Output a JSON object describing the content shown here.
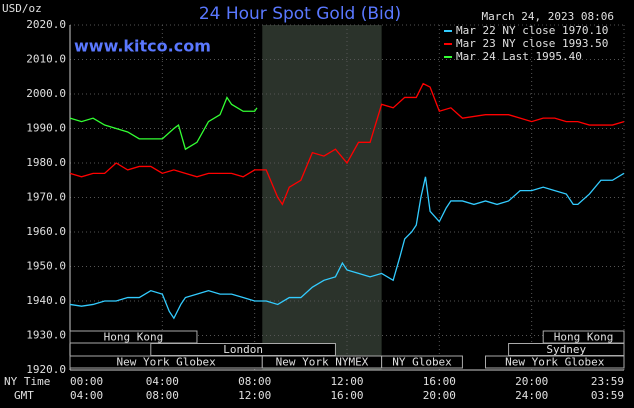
{
  "chart_data": {
    "type": "line",
    "title": "24 Hour Spot Gold (Bid)",
    "timestamp": "March 24, 2023 08:06",
    "watermark": "www.kitco.com",
    "y_label": "USD/oz",
    "x_label": "NY Time",
    "x2_label": "GMT",
    "xlim": [
      0,
      24
    ],
    "ylim": [
      1920,
      2020
    ],
    "grid": true,
    "xticks": [
      {
        "value": 0,
        "label": "00:00"
      },
      {
        "value": 4,
        "label": "04:00"
      },
      {
        "value": 8,
        "label": "08:00"
      },
      {
        "value": 12,
        "label": "12:00"
      },
      {
        "value": 16,
        "label": "16:00"
      },
      {
        "value": 20,
        "label": "20:00"
      },
      {
        "value": 24,
        "label": "23:59"
      }
    ],
    "x2ticks": [
      {
        "value": 0,
        "label": "04:00"
      },
      {
        "value": 4,
        "label": "08:00"
      },
      {
        "value": 8,
        "label": "12:00"
      },
      {
        "value": 12,
        "label": "16:00"
      },
      {
        "value": 16,
        "label": "20:00"
      },
      {
        "value": 20,
        "label": "24:00"
      },
      {
        "value": 24,
        "label": "03:59"
      }
    ],
    "yticks": [
      {
        "value": 1920,
        "label": "1920.0"
      },
      {
        "value": 1930,
        "label": "1930.0"
      },
      {
        "value": 1940,
        "label": "1940.0"
      },
      {
        "value": 1950,
        "label": "1950.0"
      },
      {
        "value": 1960,
        "label": "1960.0"
      },
      {
        "value": 1970,
        "label": "1970.0"
      },
      {
        "value": 1980,
        "label": "1980.0"
      },
      {
        "value": 1990,
        "label": "1990.0"
      },
      {
        "value": 2000,
        "label": "2000.0"
      },
      {
        "value": 2010,
        "label": "2010.0"
      },
      {
        "value": 2020,
        "label": "2020.0"
      }
    ],
    "shaded_region": [
      8.33,
      13.5
    ],
    "sessions": [
      {
        "name": "Hong Kong",
        "start": 0,
        "end": 5.5,
        "row": 0
      },
      {
        "name": "Hong Kong",
        "start": 20.5,
        "end": 24,
        "row": 0
      },
      {
        "name": "London",
        "start": 3.5,
        "end": 11.5,
        "row": 1
      },
      {
        "name": "Sydney",
        "start": 19,
        "end": 24,
        "row": 1
      },
      {
        "name": "New York Globex",
        "start": 0,
        "end": 8.33,
        "row": 2
      },
      {
        "name": "New York NYMEX",
        "start": 8.33,
        "end": 13.5,
        "row": 2
      },
      {
        "name": "NY Globex",
        "start": 13.5,
        "end": 17,
        "row": 2
      },
      {
        "name": "New York Globex",
        "start": 18,
        "end": 24,
        "row": 2
      }
    ],
    "series": [
      {
        "name": "Mar 22 NY close 1970.10",
        "color": "#33ccff",
        "x": [
          0,
          0.5,
          1,
          1.5,
          2,
          2.5,
          3,
          3.5,
          4,
          4.3,
          4.5,
          4.8,
          5,
          5.5,
          6,
          6.5,
          7,
          7.5,
          8,
          8.5,
          9,
          9.5,
          10,
          10.5,
          11,
          11.5,
          11.8,
          12,
          12.5,
          13,
          13.5,
          14,
          14.3,
          14.5,
          14.8,
          15,
          15.2,
          15.4,
          15.6,
          16,
          16.3,
          16.5,
          17,
          17.5,
          18,
          18.5,
          19,
          19.5,
          20,
          20.5,
          21,
          21.5,
          21.8,
          22,
          22.5,
          23,
          23.5,
          24
        ],
        "values": [
          1939,
          1938.5,
          1939,
          1940,
          1940,
          1941,
          1941,
          1943,
          1942,
          1937,
          1935,
          1939,
          1941,
          1942,
          1943,
          1942,
          1942,
          1941,
          1940,
          1940,
          1939,
          1941,
          1941,
          1944,
          1946,
          1947,
          1951,
          1949,
          1948,
          1947,
          1948,
          1946,
          1953,
          1958,
          1960,
          1962,
          1970,
          1976,
          1966,
          1963,
          1967,
          1969,
          1969,
          1968,
          1969,
          1968,
          1969,
          1972,
          1972,
          1973,
          1972,
          1971,
          1968,
          1968,
          1971,
          1975,
          1975,
          1977
        ]
      },
      {
        "name": "Mar 23 NY close 1993.50",
        "color": "#ff0000",
        "x": [
          0,
          0.5,
          1,
          1.5,
          2,
          2.5,
          3,
          3.5,
          4,
          4.5,
          5,
          5.5,
          6,
          6.5,
          7,
          7.5,
          8,
          8.5,
          9,
          9.2,
          9.5,
          10,
          10.5,
          11,
          11.5,
          12,
          12.5,
          13,
          13.5,
          14,
          14.5,
          15,
          15.3,
          15.6,
          16,
          16.5,
          17,
          18,
          19,
          19.5,
          20,
          20.5,
          21,
          21.5,
          22,
          22.5,
          23,
          23.5,
          24
        ],
        "values": [
          1977,
          1976,
          1977,
          1977,
          1980,
          1978,
          1979,
          1979,
          1977,
          1978,
          1977,
          1976,
          1977,
          1977,
          1977,
          1976,
          1978,
          1978,
          1970,
          1968,
          1973,
          1975,
          1983,
          1982,
          1984,
          1980,
          1986,
          1986,
          1997,
          1996,
          1999,
          1999,
          2003,
          2002,
          1995,
          1996,
          1993,
          1994,
          1994,
          1993,
          1992,
          1993,
          1993,
          1992,
          1992,
          1991,
          1991,
          1991,
          1992
        ]
      },
      {
        "name": "Mar 24 Last 1995.40",
        "color": "#33ff33",
        "x": [
          0,
          0.5,
          1,
          1.5,
          2,
          2.5,
          3,
          3.5,
          4,
          4.5,
          4.7,
          5,
          5.5,
          6,
          6.5,
          6.8,
          7,
          7.5,
          8,
          8.1
        ],
        "values": [
          1993,
          1992,
          1993,
          1991,
          1990,
          1989,
          1987,
          1987,
          1987,
          1990,
          1991,
          1984,
          1986,
          1992,
          1994,
          1999,
          1997,
          1995,
          1995,
          1996
        ]
      }
    ]
  }
}
